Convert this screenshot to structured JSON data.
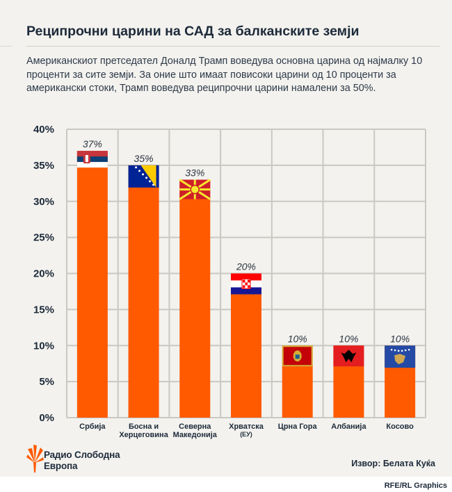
{
  "title": "Реципрочни царини на САД за балканските земји",
  "subtitle": "Американскиот претседател Доналд Трамп воведува основна царина од најмалку 10 проценти за сите земји. За оние што имаат повисоки царини од 10 проценти за американски стоки, Трамп воведува реципрочни царини намалени за 50%.",
  "logo_line1": "Радио Слободна",
  "logo_line2": "Европа",
  "source": "Извор: Белата Куќа",
  "credit": "RFE/RL Graphics",
  "colors": {
    "bar": "#ff5a00",
    "grid": "#c9c8c2",
    "text": "#1d2a3a"
  },
  "chart_data": {
    "type": "bar",
    "title": "Реципрочни царини на САД за балканските земји",
    "xlabel": "",
    "ylabel": "",
    "ylim": [
      0,
      40
    ],
    "yticks": [
      0,
      5,
      10,
      15,
      20,
      25,
      30,
      35,
      40
    ],
    "ytick_labels": [
      "0%",
      "5%",
      "10%",
      "15%",
      "20%",
      "25%",
      "30%",
      "35%",
      "40%"
    ],
    "grid": true,
    "categories": [
      {
        "line1": "Србија",
        "line2": ""
      },
      {
        "line1": "Босна и",
        "line2": "Херцеговина"
      },
      {
        "line1": "Северна",
        "line2": "Македонија"
      },
      {
        "line1": "Хрватска",
        "line2": "(ЕУ)"
      },
      {
        "line1": "Црна Гора",
        "line2": ""
      },
      {
        "line1": "Албанија",
        "line2": ""
      },
      {
        "line1": "Косово",
        "line2": ""
      }
    ],
    "values": [
      37,
      35,
      33,
      20,
      10,
      10,
      10
    ],
    "value_labels": [
      "37%",
      "35%",
      "33%",
      "20%",
      "10%",
      "10%",
      "10%"
    ],
    "flags": [
      "serbia-flag",
      "bosnia-flag",
      "north-macedonia-flag",
      "croatia-flag",
      "montenegro-flag",
      "albania-flag",
      "kosovo-flag"
    ]
  }
}
